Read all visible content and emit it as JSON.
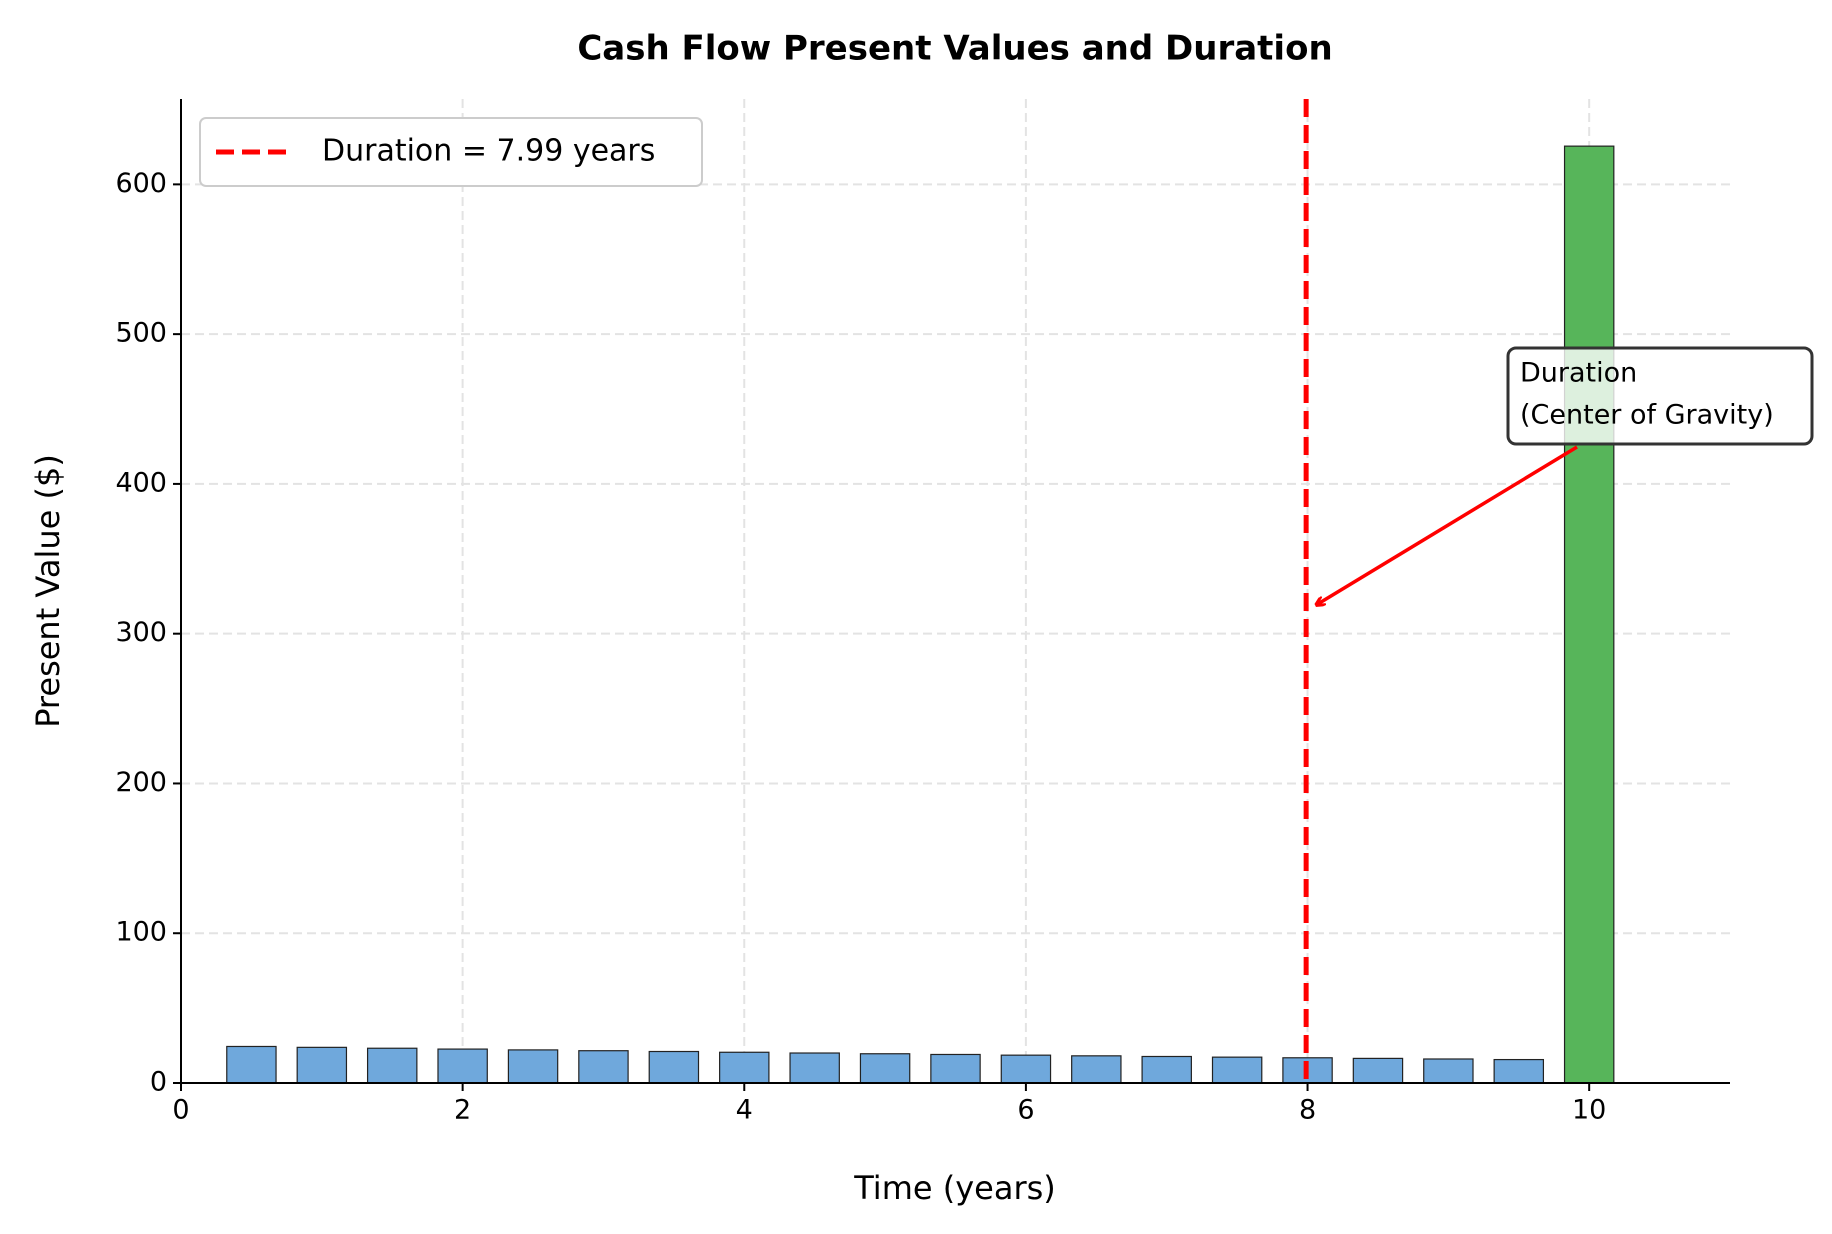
{
  "chart_data": {
    "type": "bar",
    "title": "Cash Flow Present Values and Duration",
    "x_label": "Time (years)",
    "y_label": "Present Value ($)",
    "x": [
      0.5,
      1,
      1.5,
      2,
      2.5,
      3,
      3.5,
      4,
      4.5,
      5,
      5.5,
      6,
      6.5,
      7,
      7.5,
      8,
      8.5,
      9,
      9.5,
      10
    ],
    "values": [
      24.39,
      23.8,
      23.21,
      22.65,
      22.1,
      21.56,
      21.03,
      20.52,
      20.02,
      19.53,
      19.05,
      18.59,
      18.14,
      17.7,
      17.26,
      16.84,
      16.43,
      16.03,
      15.64,
      625.53
    ],
    "colors": [
      "#6fa8dc",
      "#6fa8dc",
      "#6fa8dc",
      "#6fa8dc",
      "#6fa8dc",
      "#6fa8dc",
      "#6fa8dc",
      "#6fa8dc",
      "#6fa8dc",
      "#6fa8dc",
      "#6fa8dc",
      "#6fa8dc",
      "#6fa8dc",
      "#6fa8dc",
      "#6fa8dc",
      "#6fa8dc",
      "#6fa8dc",
      "#6fa8dc",
      "#6fa8dc",
      "#57b55a"
    ],
    "duration": 7.99,
    "duration_color": "#ff0000",
    "legend_label": "Duration = 7.99 years",
    "legend_position": "upper left",
    "annotation": [
      "Duration",
      "(Center of Gravity)"
    ],
    "xlim": [
      0,
      11
    ],
    "xticks": [
      0,
      2,
      4,
      6,
      8,
      10
    ],
    "ylim": [
      0,
      657
    ],
    "yticks": [
      0,
      100,
      200,
      300,
      400,
      500,
      600
    ],
    "grid": true
  }
}
